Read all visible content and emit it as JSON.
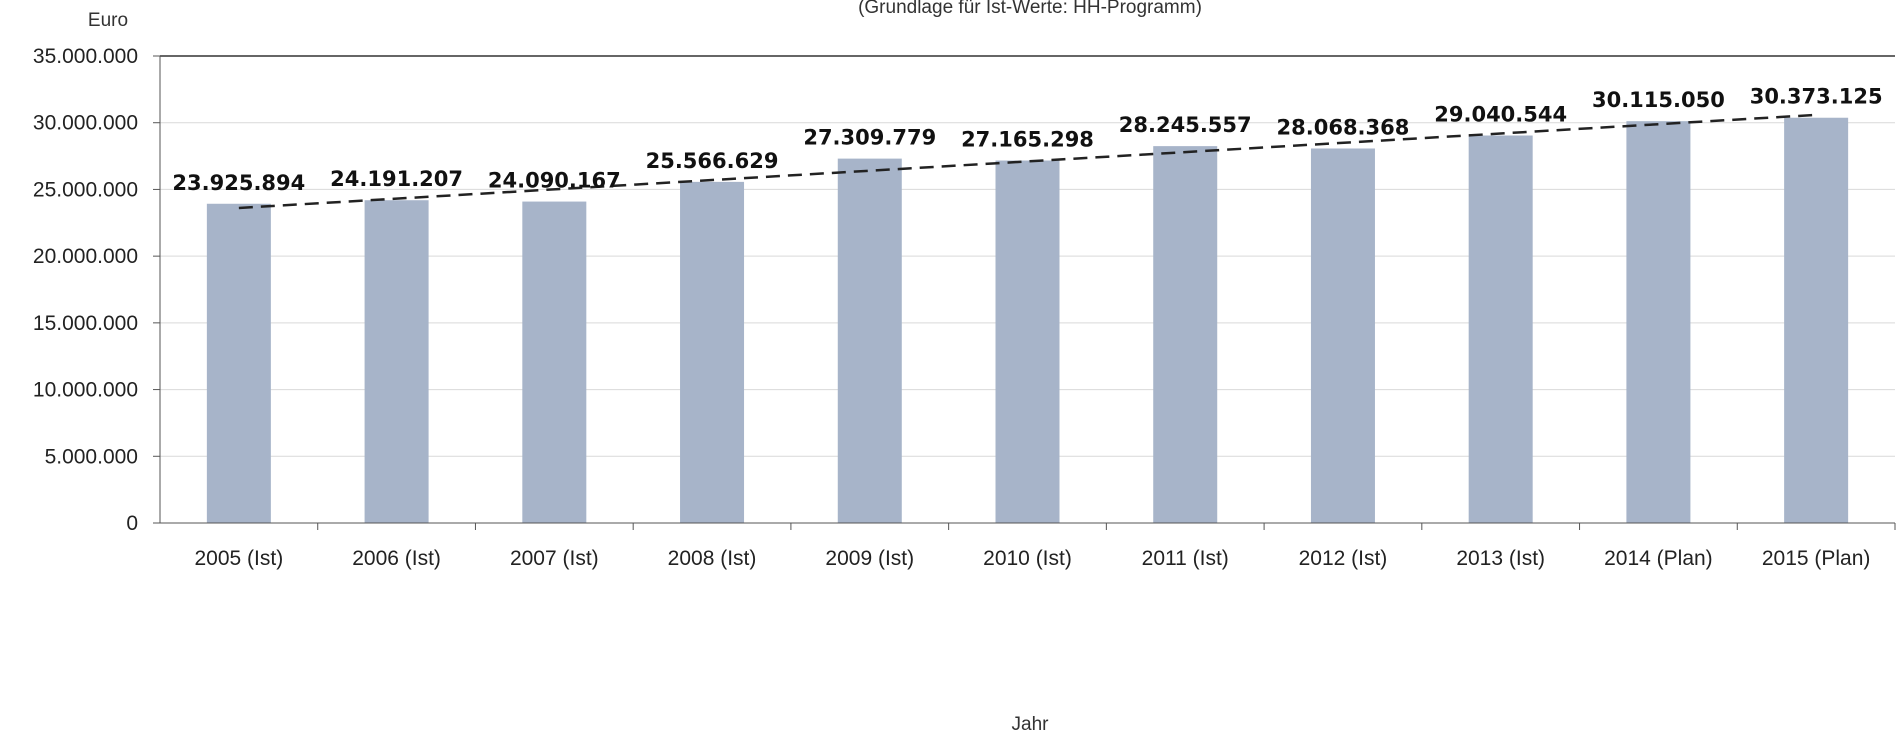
{
  "chart_data": {
    "type": "bar",
    "subtitle": "(Grundlage für Ist-Werte: HH-Programm)",
    "ylabel": "Euro",
    "xlabel": "Jahr",
    "categories": [
      "2005 (Ist)",
      "2006 (Ist)",
      "2007 (Ist)",
      "2008 (Ist)",
      "2009 (Ist)",
      "2010 (Ist)",
      "2011 (Ist)",
      "2012 (Ist)",
      "2013 (Ist)",
      "2014 (Plan)",
      "2015 (Plan)"
    ],
    "values": [
      23925894,
      24191207,
      24090167,
      25566629,
      27309779,
      27165298,
      28245557,
      28068368,
      29040544,
      30115050,
      30373125
    ],
    "data_labels": [
      "23.925.894",
      "24.191.207",
      "24.090.167",
      "25.566.629",
      "27.309.779",
      "27.165.298",
      "28.245.557",
      "28.068.368",
      "29.040.544",
      "30.115.050",
      "30.373.125"
    ],
    "ylim": [
      0,
      35000000
    ],
    "yticks": [
      0,
      5000000,
      10000000,
      15000000,
      20000000,
      25000000,
      30000000,
      35000000
    ],
    "ytick_labels": [
      "0",
      "5.000.000",
      "10.000.000",
      "15.000.000",
      "20.000.000",
      "25.000.000",
      "30.000.000",
      "35.000.000"
    ],
    "trendline": {
      "style": "dashed",
      "color": "#222222"
    },
    "grid": true,
    "legend": "none",
    "colors": {
      "bar": "#a7b4c9",
      "grid": "#d9d9d9",
      "axis": "#555555"
    }
  }
}
